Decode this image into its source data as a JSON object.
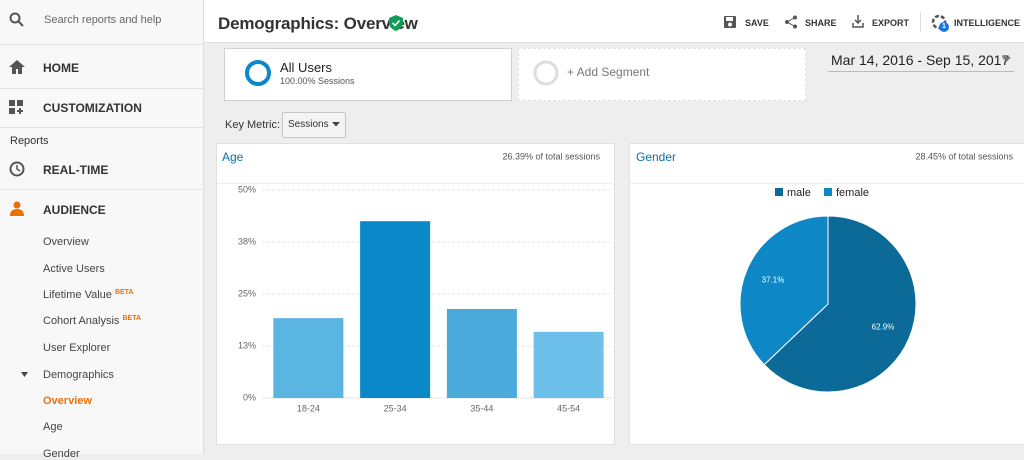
{
  "sidebar": {
    "search": "Search reports and help",
    "home": "HOME",
    "customization": "CUSTOMIZATION",
    "reports": "Reports",
    "real_time": "REAL-TIME",
    "audience": "AUDIENCE",
    "beta": "BETA",
    "items": [
      "Overview",
      "Active Users",
      "Lifetime Value",
      "Cohort Analysis",
      "User Explorer",
      "Demographics",
      "Overview",
      "Age",
      "Gender"
    ]
  },
  "header": {
    "title": "Demographics: Overview",
    "actions": [
      "SAVE",
      "SHARE",
      "EXPORT",
      "INTELLIGENCE"
    ],
    "badge": "1"
  },
  "segments": {
    "name": "All Users",
    "detail": "100.00% Sessions",
    "add": "+ Add Segment"
  },
  "date_range": "Mar 14, 2016 - Sep 15, 2017",
  "key_metric": {
    "label": "Key Metric:",
    "value": "Sessions"
  },
  "chart_data": [
    {
      "type": "bar",
      "title": "Age",
      "subtitle": "26.39% of total sessions",
      "categories": [
        "18-24",
        "25-34",
        "35-44",
        "45-54"
      ],
      "values": [
        19.2,
        42.5,
        21.4,
        15.9
      ],
      "colors": [
        "#5bb5e1",
        "#0a88c7",
        "#4aaadc",
        "#6cc0e9"
      ],
      "ylim": [
        0,
        50
      ],
      "yticks": [
        {
          "value": 0,
          "label": "0%"
        },
        {
          "value": 12.5,
          "label": "13%"
        },
        {
          "value": 25,
          "label": "25%"
        },
        {
          "value": 37.5,
          "label": "38%"
        },
        {
          "value": 50,
          "label": "50%"
        }
      ],
      "grid": true
    },
    {
      "type": "pie",
      "title": "Gender",
      "subtitle": "28.45% of total sessions",
      "categories": [
        "male",
        "female"
      ],
      "values": [
        62.9,
        37.1
      ],
      "value_labels": [
        "62.9%",
        "37.1%"
      ],
      "colors": [
        "#0b6a97",
        "#0d87c6"
      ]
    }
  ]
}
